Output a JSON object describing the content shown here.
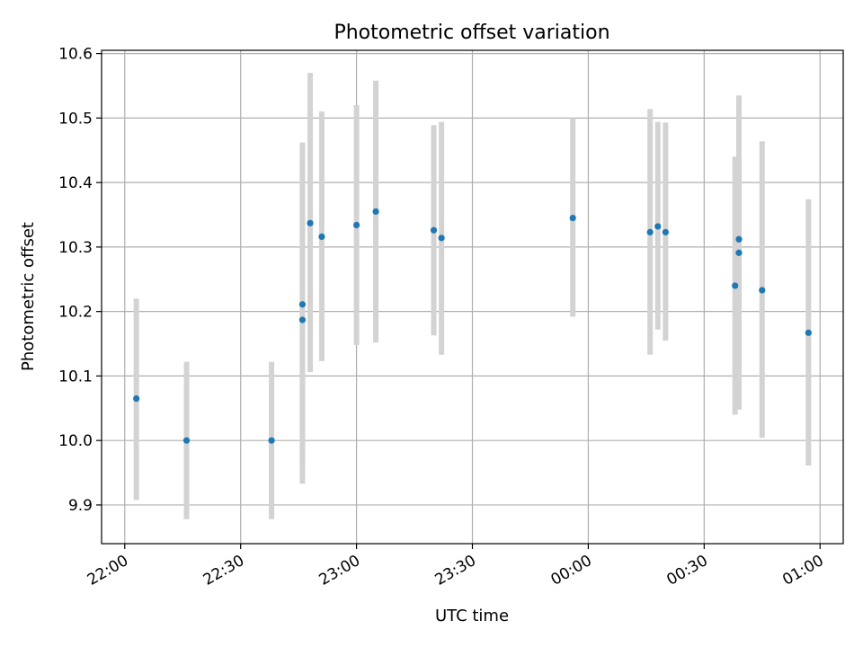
{
  "chart_data": {
    "type": "scatter",
    "title": "Photometric offset variation",
    "xlabel": "UTC time",
    "ylabel": "Photometric offset",
    "xlim": [
      "21:54",
      "01:06"
    ],
    "ylim": [
      9.84,
      10.605
    ],
    "x_ticks": [
      "22:00",
      "22:30",
      "23:00",
      "23:30",
      "00:00",
      "00:30",
      "01:00"
    ],
    "y_ticks": [
      "9.9",
      "10.0",
      "10.1",
      "10.2",
      "10.3",
      "10.4",
      "10.5",
      "10.6"
    ],
    "grid": true,
    "colors": {
      "points": "#1f77b4",
      "errorbars": "#d3d3d3",
      "grid": "#b0b0b0"
    },
    "series": [
      {
        "points": [
          {
            "x": "22:03",
            "y": 10.065,
            "lo": 9.908,
            "hi": 10.22
          },
          {
            "x": "22:16",
            "y": 10.0,
            "lo": 9.878,
            "hi": 10.122
          },
          {
            "x": "22:38",
            "y": 10.0,
            "lo": 9.878,
            "hi": 10.122
          },
          {
            "x": "22:46",
            "y": 10.187,
            "lo": 9.933,
            "hi": 10.44
          },
          {
            "x": "22:46",
            "y": 10.211,
            "lo": 9.962,
            "hi": 10.462
          },
          {
            "x": "22:48",
            "y": 10.337,
            "lo": 10.106,
            "hi": 10.57
          },
          {
            "x": "22:51",
            "y": 10.316,
            "lo": 10.123,
            "hi": 10.51
          },
          {
            "x": "23:00",
            "y": 10.334,
            "lo": 10.148,
            "hi": 10.52
          },
          {
            "x": "23:05",
            "y": 10.355,
            "lo": 10.152,
            "hi": 10.558
          },
          {
            "x": "23:20",
            "y": 10.326,
            "lo": 10.163,
            "hi": 10.489
          },
          {
            "x": "23:22",
            "y": 10.314,
            "lo": 10.133,
            "hi": 10.494
          },
          {
            "x": "23:56",
            "y": 10.345,
            "lo": 10.192,
            "hi": 10.5
          },
          {
            "x": "00:16",
            "y": 10.323,
            "lo": 10.133,
            "hi": 10.514
          },
          {
            "x": "00:18",
            "y": 10.332,
            "lo": 10.172,
            "hi": 10.494
          },
          {
            "x": "00:20",
            "y": 10.323,
            "lo": 10.155,
            "hi": 10.493
          },
          {
            "x": "00:38",
            "y": 10.24,
            "lo": 10.04,
            "hi": 10.44
          },
          {
            "x": "00:39",
            "y": 10.291,
            "lo": 10.048,
            "hi": 10.535
          },
          {
            "x": "00:39",
            "y": 10.312,
            "lo": 10.108,
            "hi": 10.516
          },
          {
            "x": "00:45",
            "y": 10.233,
            "lo": 10.004,
            "hi": 10.464
          },
          {
            "x": "00:57",
            "y": 10.167,
            "lo": 9.961,
            "hi": 10.374
          }
        ]
      }
    ]
  }
}
